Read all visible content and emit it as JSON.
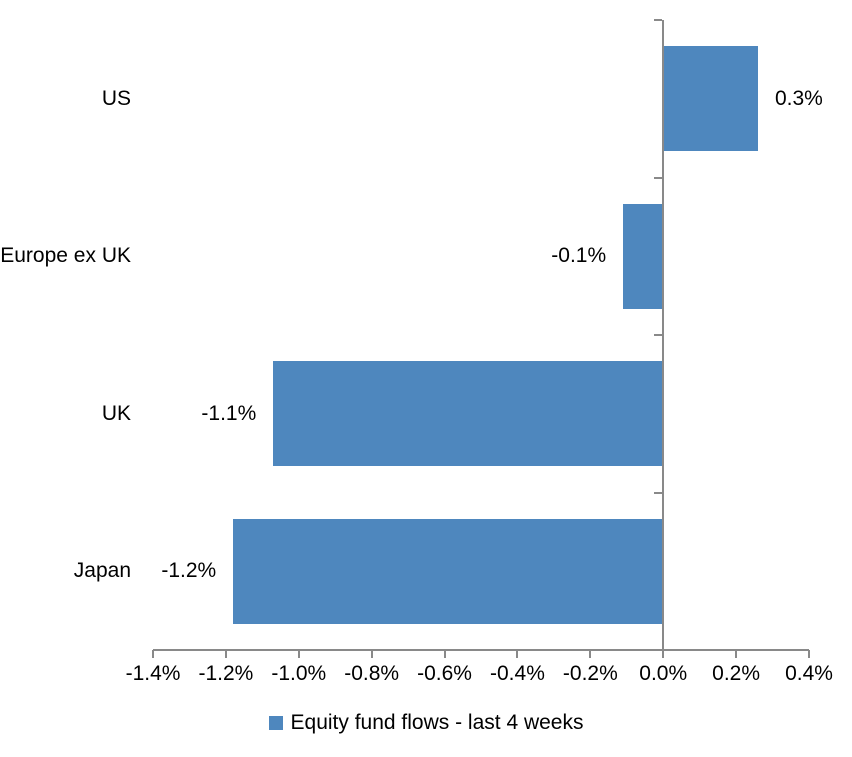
{
  "chart_data": {
    "type": "bar",
    "orientation": "horizontal",
    "categories": [
      "US",
      "Europe ex UK",
      "UK",
      "Japan"
    ],
    "values": [
      0.3,
      -0.1,
      -1.1,
      -1.2
    ],
    "data_labels": [
      "0.3%",
      "-0.1%",
      "-1.1%",
      "-1.2%"
    ],
    "plot_values": [
      0.26,
      -0.11,
      -1.07,
      -1.18
    ],
    "unit": "percent",
    "xlim": [
      -1.4,
      0.4
    ],
    "x_ticks": [
      "-1.4%",
      "-1.2%",
      "-1.0%",
      "-0.8%",
      "-0.6%",
      "-0.4%",
      "-0.2%",
      "0.0%",
      "0.2%",
      "0.4%"
    ],
    "legend": "Equity fund flows - last 4 weeks",
    "legend_position": "bottom",
    "grid": false,
    "colors": {
      "bar": "#4E87BE",
      "axis": "#898989",
      "text": "#000000",
      "background": "#FFFFFF"
    }
  }
}
